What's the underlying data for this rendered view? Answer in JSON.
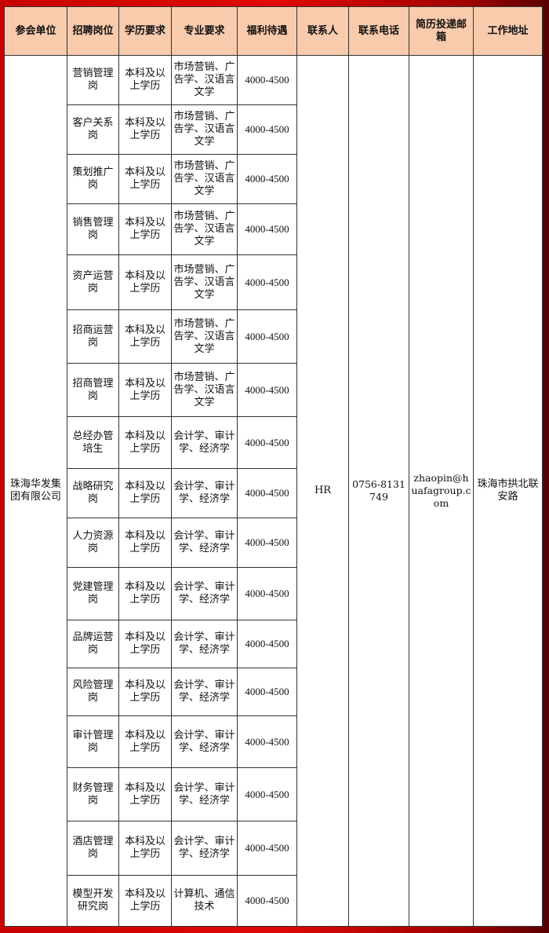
{
  "headers": [
    "参会单位",
    "招聘岗位",
    "学历要求",
    "专业要求",
    "福利待遇",
    "联系人",
    "联系电话",
    "简历投递邮箱",
    "工作地址"
  ],
  "company": "珠海华发集团有限公司",
  "contact": "HR",
  "phone": "0756-8131749",
  "email": "zhaopin@huafagroup.com",
  "address": "珠海市拱北联安路",
  "rows": [
    {
      "position": "营销管理岗",
      "education": "本科及以上学历",
      "major": "市场营销、广告学、汉语言文学",
      "salary": "4000-4500"
    },
    {
      "position": "客户关系岗",
      "education": "本科及以上学历",
      "major": "市场营销、广告学、汉语言文学",
      "salary": "4000-4500"
    },
    {
      "position": "策划推广岗",
      "education": "本科及以上学历",
      "major": "市场营销、广告学、汉语言文学",
      "salary": "4000-4500"
    },
    {
      "position": "销售管理岗",
      "education": "本科及以上学历",
      "major": "市场营销、广告学、汉语言文学",
      "salary": "4000-4500"
    },
    {
      "position": "资产运营岗",
      "education": "本科及以上学历",
      "major": "市场营销、广告学、汉语言文学",
      "salary": "4000-4500"
    },
    {
      "position": "招商运营岗",
      "education": "本科及以上学历",
      "major": "市场营销、广告学、汉语言文学",
      "salary": "4000-4500"
    },
    {
      "position": "招商管理岗",
      "education": "本科及以上学历",
      "major": "市场营销、广告学、汉语言文学",
      "salary": "4000-4500"
    },
    {
      "position": "总经办管培生",
      "education": "本科及以上学历",
      "major": "会计学、审计学、经济学",
      "salary": "4000-4500"
    },
    {
      "position": "战略研究岗",
      "education": "本科及以上学历",
      "major": "会计学、审计学、经济学",
      "salary": "4000-4500"
    },
    {
      "position": "人力资源岗",
      "education": "本科及以上学历",
      "major": "会计学、审计学、经济学",
      "salary": "4000-4500"
    },
    {
      "position": "党建管理岗",
      "education": "本科及以上学历",
      "major": "会计学、审计学、经济学",
      "salary": "4000-4500"
    },
    {
      "position": "品牌运营岗",
      "education": "本科及以上学历",
      "major": "会计学、审计学、经济学",
      "salary": "4000-4500"
    },
    {
      "position": "风险管理岗",
      "education": "本科及以上学历",
      "major": "会计学、审计学、经济学",
      "salary": "4000-4500"
    },
    {
      "position": "审计管理岗",
      "education": "本科及以上学历",
      "major": "会计学、审计学、经济学",
      "salary": "4000-4500"
    },
    {
      "position": "财务管理岗",
      "education": "本科及以上学历",
      "major": "会计学、审计学、经济学",
      "salary": "4000-4500"
    },
    {
      "position": "酒店管理岗",
      "education": "本科及以上学历",
      "major": "会计学、审计学、经济学",
      "salary": "4000-4500"
    },
    {
      "position": "模型开发研究岗",
      "education": "本科及以上学历",
      "major": "计算机、通信技术",
      "salary": "4000-4500"
    }
  ]
}
